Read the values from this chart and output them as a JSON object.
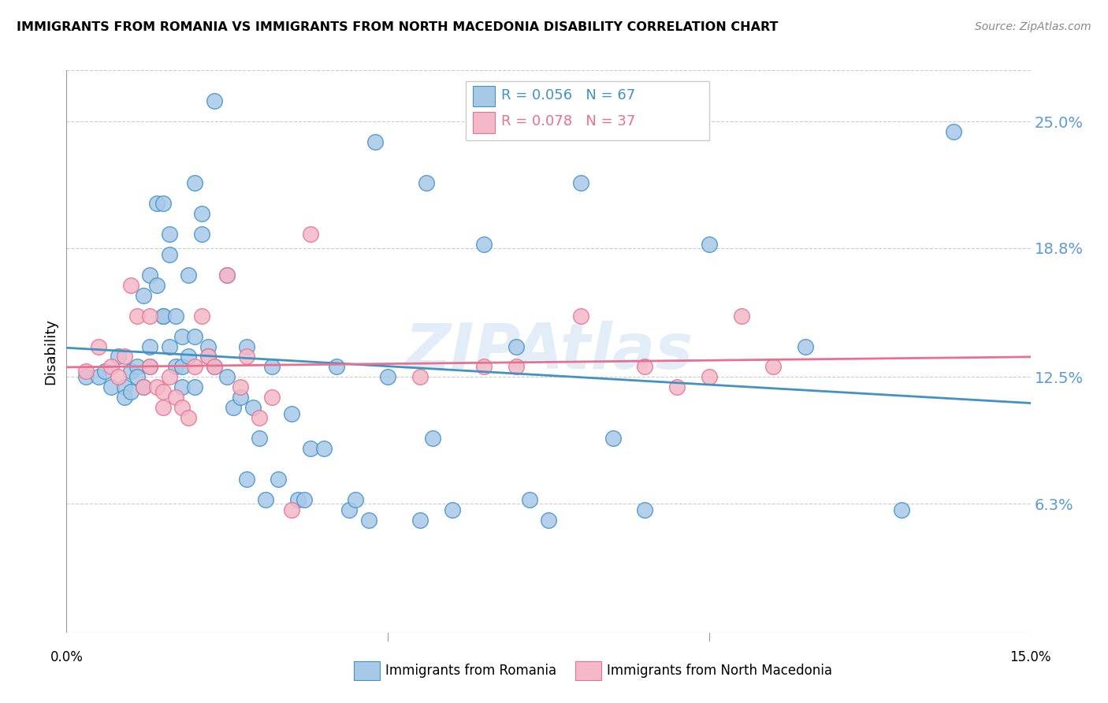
{
  "title": "IMMIGRANTS FROM ROMANIA VS IMMIGRANTS FROM NORTH MACEDONIA DISABILITY CORRELATION CHART",
  "source": "Source: ZipAtlas.com",
  "ylabel": "Disability",
  "ytick_labels": [
    "25.0%",
    "18.8%",
    "12.5%",
    "6.3%"
  ],
  "ytick_values": [
    0.25,
    0.188,
    0.125,
    0.063
  ],
  "xlim": [
    0.0,
    0.15
  ],
  "ylim": [
    0.0,
    0.275
  ],
  "blue_color": "#a8c8e8",
  "pink_color": "#f4b8c8",
  "line_blue": "#4292c6",
  "line_pink": "#e87090",
  "axis_label_color": "#5b9bd5",
  "watermark": "ZIPAtlas",
  "romania_x": [
    0.003,
    0.005,
    0.006,
    0.007,
    0.008,
    0.009,
    0.009,
    0.01,
    0.01,
    0.011,
    0.011,
    0.012,
    0.012,
    0.013,
    0.013,
    0.013,
    0.014,
    0.014,
    0.015,
    0.015,
    0.015,
    0.016,
    0.016,
    0.016,
    0.017,
    0.017,
    0.018,
    0.018,
    0.018,
    0.019,
    0.019,
    0.02,
    0.02,
    0.02,
    0.021,
    0.021,
    0.022,
    0.022,
    0.023,
    0.023,
    0.025,
    0.025,
    0.026,
    0.027,
    0.028,
    0.028,
    0.029,
    0.03,
    0.031,
    0.032,
    0.033,
    0.035,
    0.036,
    0.037,
    0.038,
    0.04,
    0.042,
    0.044,
    0.045,
    0.047,
    0.048,
    0.05,
    0.055,
    0.056,
    0.057,
    0.06,
    0.065
  ],
  "romania_y": [
    0.125,
    0.125,
    0.128,
    0.12,
    0.135,
    0.12,
    0.115,
    0.128,
    0.118,
    0.13,
    0.125,
    0.12,
    0.165,
    0.14,
    0.13,
    0.175,
    0.17,
    0.21,
    0.21,
    0.155,
    0.155,
    0.14,
    0.195,
    0.185,
    0.13,
    0.155,
    0.13,
    0.145,
    0.12,
    0.175,
    0.135,
    0.12,
    0.145,
    0.22,
    0.195,
    0.205,
    0.14,
    0.135,
    0.13,
    0.26,
    0.125,
    0.175,
    0.11,
    0.115,
    0.075,
    0.14,
    0.11,
    0.095,
    0.065,
    0.13,
    0.075,
    0.107,
    0.065,
    0.065,
    0.09,
    0.09,
    0.13,
    0.06,
    0.065,
    0.055,
    0.24,
    0.125,
    0.055,
    0.22,
    0.095,
    0.06,
    0.19
  ],
  "romania_x2": [
    0.07,
    0.072,
    0.075,
    0.08,
    0.085,
    0.09,
    0.1,
    0.115,
    0.13,
    0.138
  ],
  "romania_y2": [
    0.14,
    0.065,
    0.055,
    0.22,
    0.095,
    0.06,
    0.19,
    0.14,
    0.06,
    0.245
  ],
  "macedonia_x": [
    0.003,
    0.005,
    0.007,
    0.008,
    0.009,
    0.01,
    0.011,
    0.012,
    0.013,
    0.013,
    0.014,
    0.015,
    0.015,
    0.016,
    0.017,
    0.018,
    0.019,
    0.02,
    0.021,
    0.022,
    0.023,
    0.025,
    0.027,
    0.028,
    0.03,
    0.032,
    0.035,
    0.038,
    0.055,
    0.065,
    0.07,
    0.08,
    0.09,
    0.095,
    0.1,
    0.105,
    0.11
  ],
  "macedonia_y": [
    0.128,
    0.14,
    0.13,
    0.125,
    0.135,
    0.17,
    0.155,
    0.12,
    0.155,
    0.13,
    0.12,
    0.118,
    0.11,
    0.125,
    0.115,
    0.11,
    0.105,
    0.13,
    0.155,
    0.135,
    0.13,
    0.175,
    0.12,
    0.135,
    0.105,
    0.115,
    0.06,
    0.195,
    0.125,
    0.13,
    0.13,
    0.155,
    0.13,
    0.12,
    0.125,
    0.155,
    0.13
  ]
}
